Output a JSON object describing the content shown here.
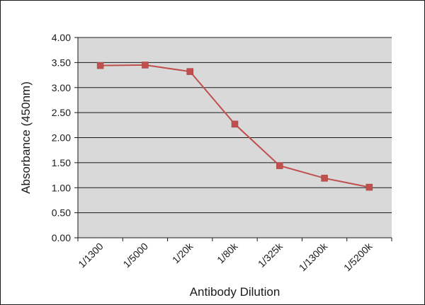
{
  "chart_data": {
    "type": "line",
    "xlabel": "Antibody Dilution",
    "ylabel": "Absorbance (450nm)",
    "categories": [
      "1/1300",
      "1/5000",
      "1/20k",
      "1/80k",
      "1/325k",
      "1/1300k",
      "1/5200k"
    ],
    "series": [
      {
        "values": [
          3.44,
          3.45,
          3.32,
          2.27,
          1.44,
          1.19,
          1.01
        ]
      }
    ],
    "ylim": [
      0,
      4
    ],
    "yticks": [
      "0.00",
      "0.50",
      "1.00",
      "1.50",
      "2.00",
      "2.50",
      "3.00",
      "3.50",
      "4.00"
    ],
    "grid": true,
    "legend": "none",
    "colors": {
      "plot_background": "#d9d9d9",
      "line": "#c0504d",
      "grid": "#1a1a1a"
    }
  }
}
